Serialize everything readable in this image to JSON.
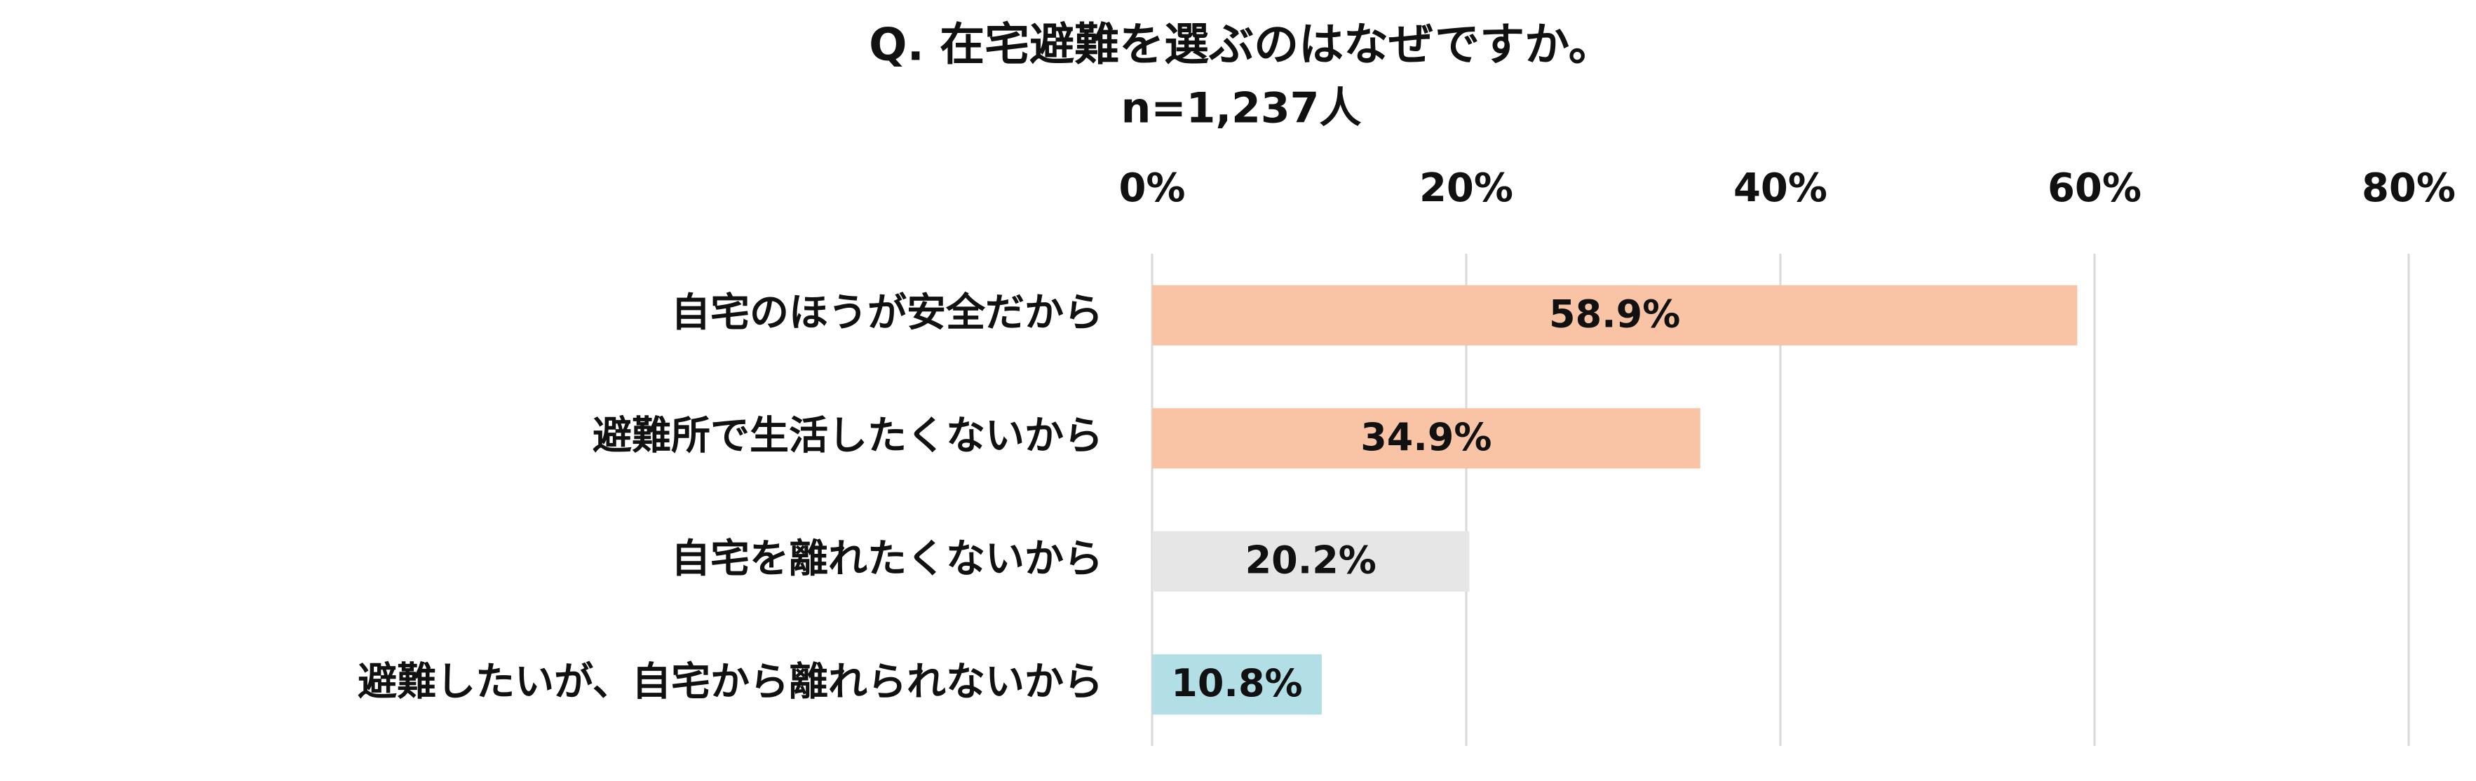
{
  "chart_data": {
    "type": "bar",
    "orientation": "horizontal",
    "title": "Q. 在宅避難を選ぶのはなぜですか。",
    "subtitle": "n=1,237人",
    "categories": [
      "自宅のほうが安全だから",
      "避難所で生活したくないから",
      "自宅を離れたくないから",
      "避難したいが、自宅から離れられないから"
    ],
    "values": [
      58.9,
      34.9,
      20.2,
      10.8
    ],
    "value_labels": [
      "58.9%",
      "34.9%",
      "20.2%",
      "10.8%"
    ],
    "colors": [
      "#f8c4a5",
      "#f8c4a5",
      "#e6e6e6",
      "#b2dfe6"
    ],
    "xlim": [
      0,
      80
    ],
    "xticks": [
      {
        "value": 0,
        "label": "0%"
      },
      {
        "value": 20,
        "label": "20%"
      },
      {
        "value": 40,
        "label": "40%"
      },
      {
        "value": 60,
        "label": "60%"
      },
      {
        "value": 80,
        "label": "80%"
      }
    ],
    "grid": true
  }
}
